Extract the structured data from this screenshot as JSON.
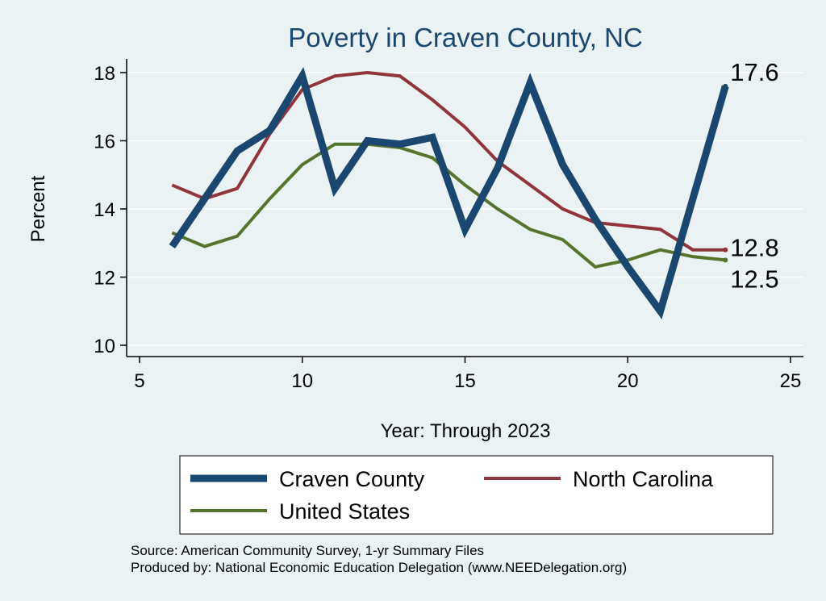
{
  "chart_data": {
    "type": "line",
    "title": "Poverty in Craven County, NC",
    "xlabel": "Year: Through 2023",
    "ylabel": "Percent",
    "xlim": [
      5,
      25
    ],
    "ylim": [
      10,
      18
    ],
    "xticks": [
      "5",
      "10",
      "15",
      "20",
      "25"
    ],
    "yticks": [
      "10",
      "12",
      "14",
      "16",
      "18"
    ],
    "grid": true,
    "legend_position": "bottom",
    "x": [
      6,
      7,
      8,
      9,
      10,
      11,
      12,
      13,
      14,
      15,
      16,
      17,
      18,
      19,
      20,
      21,
      22,
      23
    ],
    "series": [
      {
        "name": "Craven County",
        "color": "#1a476f",
        "values": [
          12.9,
          14.3,
          15.7,
          16.3,
          17.9,
          14.6,
          16.0,
          15.9,
          16.1,
          13.4,
          15.2,
          17.7,
          15.3,
          13.7,
          12.3,
          11.0,
          14.3,
          17.6
        ],
        "end_label": "17.6"
      },
      {
        "name": "North Carolina",
        "color": "#90353b",
        "values": [
          14.7,
          14.3,
          14.6,
          16.2,
          17.5,
          17.9,
          18.0,
          17.9,
          17.2,
          16.4,
          15.4,
          14.7,
          14.0,
          13.6,
          13.5,
          13.4,
          12.8,
          12.8
        ],
        "end_label": "12.8"
      },
      {
        "name": "United States",
        "color": "#55752f",
        "values": [
          13.3,
          12.9,
          13.2,
          14.3,
          15.3,
          15.9,
          15.9,
          15.8,
          15.5,
          14.7,
          14.0,
          13.4,
          13.1,
          12.3,
          12.5,
          12.8,
          12.6,
          12.5
        ],
        "end_label": "12.5"
      }
    ]
  },
  "source_note": "Source: American Community Survey, 1-yr Summary Files",
  "produced_note": "Produced by: National Economic Education Delegation (www.NEEDelegation.org)"
}
